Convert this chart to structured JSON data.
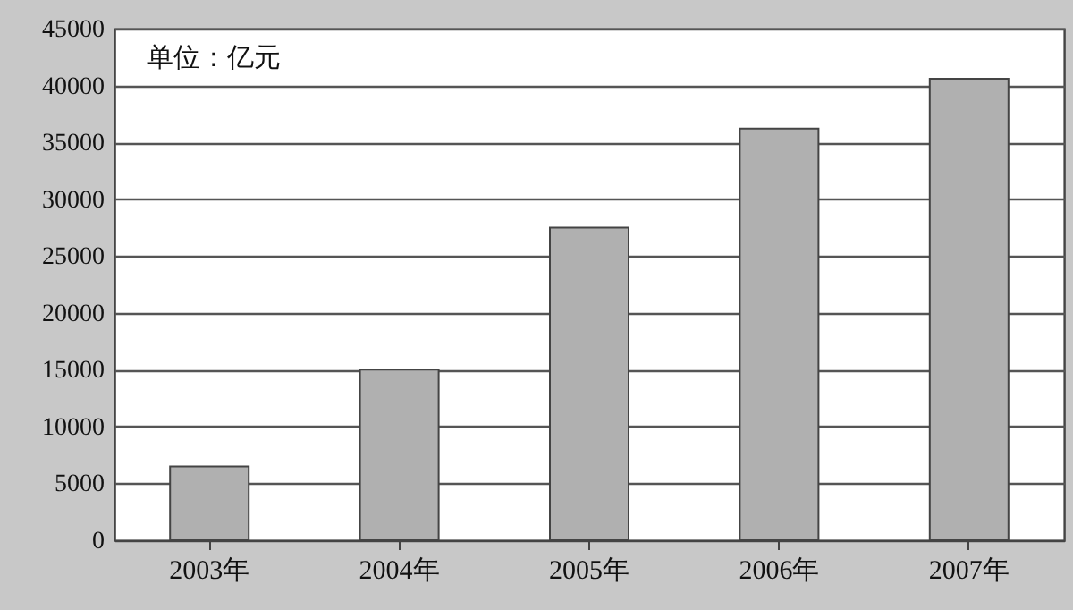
{
  "chart_data": {
    "type": "bar",
    "categories": [
      "2003年",
      "2004年",
      "2005年",
      "2006年",
      "2007年"
    ],
    "values": [
      6500,
      15000,
      27500,
      36200,
      40600
    ],
    "color": "#b0b0b0",
    "ylim": [
      0,
      45000
    ],
    "yticks": [
      0,
      5000,
      10000,
      15000,
      20000,
      25000,
      30000,
      35000,
      40000,
      45000
    ],
    "grid": "y",
    "annotations": [
      "单位：亿元"
    ]
  }
}
